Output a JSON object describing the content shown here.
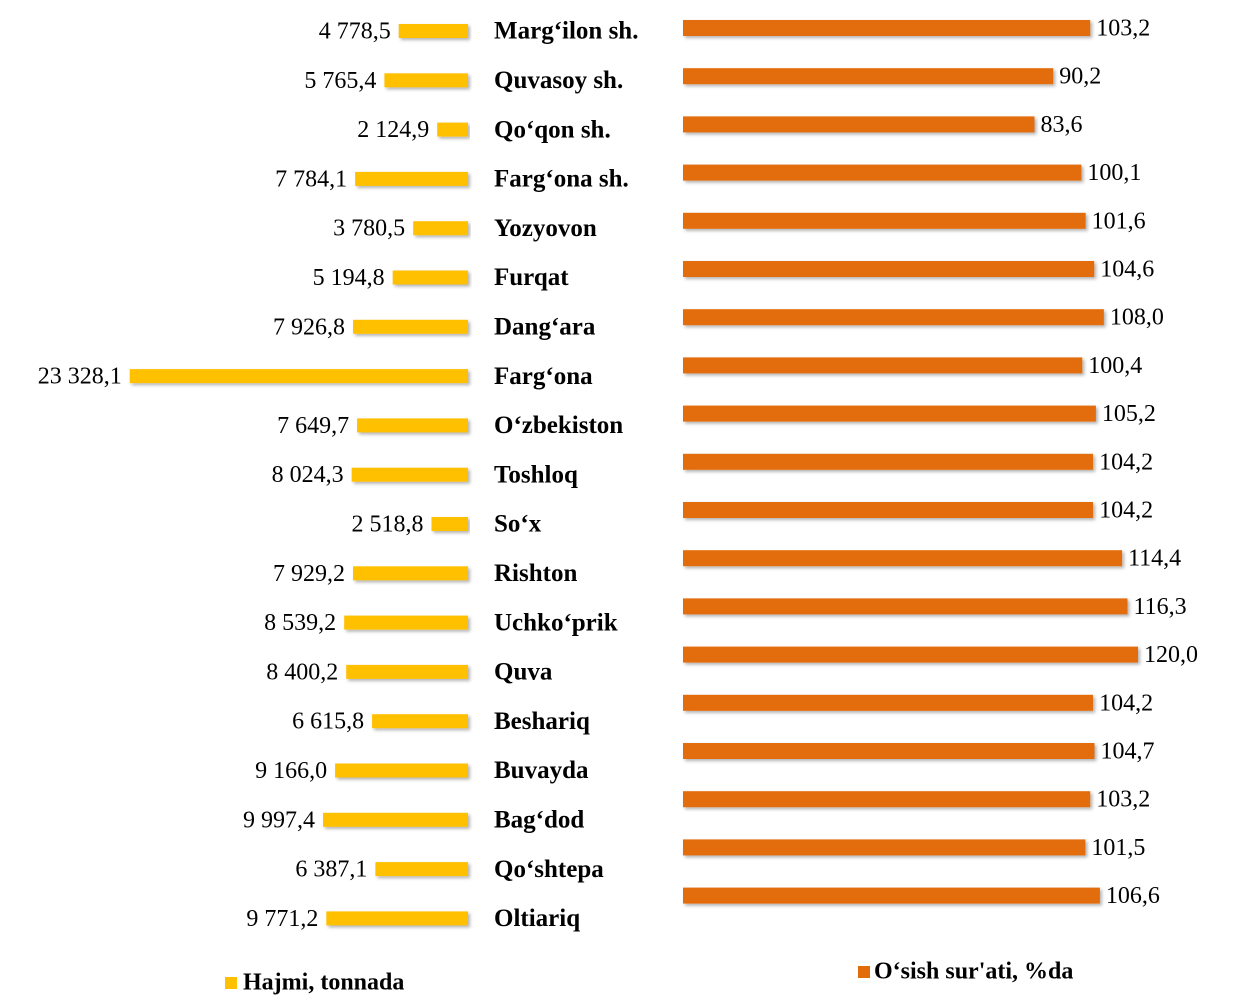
{
  "chart_data": {
    "type": "bar",
    "orientation": "horizontal",
    "categories": [
      "Marg‘ilon sh.",
      "Quvasoy sh.",
      "Qo‘qon sh.",
      "Farg‘ona sh.",
      "Yozyovon",
      "Furqat",
      "Dang‘ara",
      "Farg‘ona",
      "O‘zbekiston",
      "Toshloq",
      "So‘x",
      "Rishton",
      "Uchko‘prik",
      "Quva",
      "Beshariq",
      "Buvayda",
      "Bag‘dod",
      "Qo‘shtepa",
      "Oltiariq"
    ],
    "series": [
      {
        "name": "Hajmi, tonnada",
        "color": "#FFC000",
        "xlim": [
          0,
          24000
        ],
        "values": [
          4778.5,
          5765.4,
          2124.9,
          7784.1,
          3780.5,
          5194.8,
          7926.8,
          23328.1,
          7649.7,
          8024.3,
          2518.8,
          7929.2,
          8539.2,
          8400.2,
          6615.8,
          9166.0,
          9997.4,
          6387.1,
          9771.2
        ],
        "value_labels": [
          "4 778,5",
          "5 765,4",
          "2 124,9",
          "7 784,1",
          "3 780,5",
          "5 194,8",
          "7 926,8",
          "23 328,1",
          "7 649,7",
          "8 024,3",
          "2 518,8",
          "7 929,2",
          "8 539,2",
          "8 400,2",
          "6 615,8",
          "9 166,0",
          "9 997,4",
          "6 387,1",
          "9 771,2"
        ]
      },
      {
        "name": "O‘sish sur'ati, %da",
        "color": "#E36C0A",
        "xlim": [
          -40,
          120
        ],
        "values": [
          103.2,
          90.2,
          83.6,
          100.1,
          101.6,
          104.6,
          108.0,
          100.4,
          105.2,
          104.2,
          104.2,
          114.4,
          116.3,
          120.0,
          104.2,
          104.7,
          103.2,
          101.5,
          106.6
        ],
        "value_labels": [
          "103,2",
          "90,2",
          "83,6",
          "100,1",
          "101,6",
          "104,6",
          "108,0",
          "100,4",
          "105,2",
          "104,2",
          "104,2",
          "114,4",
          "116,3",
          "120,0",
          "104,2",
          "104,7",
          "103,2",
          "101,5",
          "106,6"
        ]
      }
    ]
  }
}
